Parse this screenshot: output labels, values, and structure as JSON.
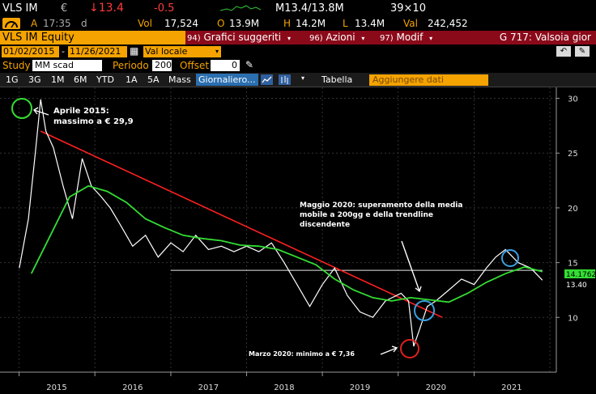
{
  "quote": {
    "ticker": "VLS IM",
    "currency": "€",
    "last": "↓13.4",
    "change": "-0.5",
    "at_label": "A",
    "time": "17:35",
    "d_label": "d",
    "mrange": "M13.4/13.8M",
    "size": "39×10",
    "vol_label": "Vol",
    "vol": "17,524",
    "open_label": "O",
    "open": "13.9M",
    "high_label": "H",
    "high": "14.2M",
    "low_label": "L",
    "low": "13.4M",
    "val_label": "Val",
    "val": "242,452",
    "flag_label": "I"
  },
  "toolbar": {
    "security": "VLS IM Equity",
    "menu1_num": "94)",
    "menu1": "Grafici suggeriti",
    "menu2_num": "96)",
    "menu2": "Azioni",
    "menu3_num": "97)",
    "menu3": "Modif",
    "right_title": "G 717: Valsoia gior"
  },
  "range": {
    "start": "01/02/2015",
    "end": "11/26/2021",
    "currency_mode": "Val locale"
  },
  "study": {
    "label": "Study",
    "value": "MM scad",
    "periodo_label": "Periodo",
    "periodo": "200",
    "offset_label": "Offset",
    "offset": "0"
  },
  "periods": [
    "1G",
    "3G",
    "1M",
    "6M",
    "YTD",
    "1A",
    "5A",
    "Mass"
  ],
  "frequency": "Giornaliero...",
  "table_label": "Tabella",
  "add_data_placeholder": "Aggiungere dati",
  "annotations": {
    "peak": "Aprile 2015:\nmassimo a € 29,9",
    "breakout": "Maggio 2020: superamento della media\nmobile a 200gg e della trendline\ndiscendente",
    "low": "Marzo 2020: minimo a € 7,36"
  },
  "colors": {
    "price": "#ffffff",
    "ma200": "#33dd33",
    "trendline": "#ff2020",
    "support": "#e8e8e8",
    "circle_peak": "#33dd33",
    "circle_blue": "#3aa0e0",
    "circle_low": "#e02020",
    "accent": "#f5a300",
    "menu": "#8b0a1a"
  },
  "chart_data": {
    "type": "line",
    "x_axis_labels": [
      "2015",
      "2016",
      "2017",
      "2018",
      "2019",
      "2020",
      "2021"
    ],
    "y_ticks": [
      10,
      15,
      20,
      25,
      30
    ],
    "ylim": [
      5,
      31
    ],
    "last_ma": "14.1762",
    "last_price": "13.40",
    "series": [
      {
        "key": "price",
        "x": [
          "2015-01-02",
          "2015-02-15",
          "2015-03-20",
          "2015-04-15",
          "2015-05-10",
          "2015-06-15",
          "2015-08-01",
          "2015-09-15",
          "2015-11-01",
          "2015-12-15",
          "2016-02-01",
          "2016-03-15",
          "2016-05-01",
          "2016-07-01",
          "2016-09-01",
          "2016-11-01",
          "2017-01-01",
          "2017-03-01",
          "2017-05-01",
          "2017-07-01",
          "2017-09-01",
          "2017-11-01",
          "2018-01-01",
          "2018-03-01",
          "2018-05-01",
          "2018-07-01",
          "2018-09-01",
          "2018-11-01",
          "2019-01-01",
          "2019-03-01",
          "2019-05-01",
          "2019-07-01",
          "2019-09-01",
          "2019-11-01",
          "2020-01-15",
          "2020-02-20",
          "2020-03-16",
          "2020-04-15",
          "2020-05-20",
          "2020-07-01",
          "2020-09-01",
          "2020-11-01",
          "2021-01-01",
          "2021-03-01",
          "2021-04-15",
          "2021-06-01",
          "2021-08-01",
          "2021-10-01",
          "2021-11-26"
        ],
        "y": [
          14.5,
          19.0,
          25.0,
          29.9,
          27.0,
          25.5,
          22.0,
          19.0,
          24.5,
          22.0,
          21.0,
          20.0,
          18.5,
          16.5,
          17.5,
          15.5,
          16.8,
          16.0,
          17.5,
          16.2,
          16.5,
          16.0,
          16.5,
          16.0,
          16.8,
          15.0,
          13.0,
          11.0,
          13.0,
          14.5,
          12.0,
          10.5,
          10.0,
          11.5,
          12.2,
          11.5,
          7.36,
          9.0,
          11.0,
          11.5,
          12.5,
          13.5,
          13.0,
          14.5,
          15.5,
          16.2,
          15.0,
          14.5,
          13.4
        ]
      },
      {
        "key": "ma200",
        "x": [
          "2015-03-01",
          "2015-06-01",
          "2015-09-01",
          "2015-12-01",
          "2016-03-01",
          "2016-06-01",
          "2016-09-01",
          "2016-12-01",
          "2017-03-01",
          "2017-06-01",
          "2017-09-01",
          "2017-12-01",
          "2018-03-01",
          "2018-06-01",
          "2018-09-01",
          "2018-12-01",
          "2019-03-01",
          "2019-06-01",
          "2019-09-01",
          "2019-12-01",
          "2020-03-01",
          "2020-06-01",
          "2020-09-01",
          "2020-12-01",
          "2021-03-01",
          "2021-06-01",
          "2021-09-01",
          "2021-11-26"
        ],
        "y": [
          14.0,
          17.5,
          21.0,
          22.0,
          21.5,
          20.5,
          19.0,
          18.2,
          17.5,
          17.2,
          17.0,
          16.6,
          16.5,
          16.2,
          15.5,
          14.8,
          13.5,
          12.5,
          11.8,
          11.5,
          11.8,
          11.6,
          11.4,
          12.2,
          13.2,
          14.0,
          14.6,
          14.18
        ]
      }
    ],
    "trendline": {
      "x": [
        "2015-04-15",
        "2020-08-01"
      ],
      "y": [
        27.0,
        10.0
      ]
    },
    "support": {
      "x": [
        "2017-01-01",
        "2021-11-26"
      ],
      "y": [
        14.3,
        14.3
      ]
    }
  }
}
